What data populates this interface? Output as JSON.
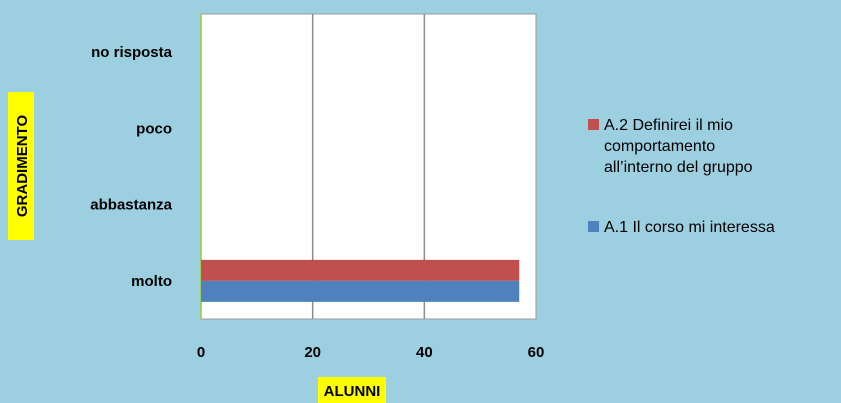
{
  "chart_data": {
    "type": "bar",
    "orientation": "horizontal",
    "categories": [
      "molto",
      "abbastanza",
      "poco",
      "no risposta"
    ],
    "series": [
      {
        "name": "A.1 Il corso mi interessa",
        "color": "#4f81bd",
        "values": [
          57,
          0,
          0,
          0
        ]
      },
      {
        "name": "A.2 Definirei il mio comportamento all’interno del gruppo",
        "name_lines": [
          "A.2 Definirei il mio",
          "comportamento",
          "all’interno del gruppo"
        ],
        "color": "#c0504d",
        "values": [
          57,
          0,
          0,
          0
        ]
      }
    ],
    "xlabel": "ALUNNI",
    "ylabel": "GRADIMENTO",
    "xlim": [
      0,
      60
    ],
    "xticks": [
      0,
      20,
      40,
      60
    ],
    "grid": true,
    "legend": "right",
    "colors": {
      "background": "#9ccfe0",
      "plot_area": "#ffffff",
      "axis_title_bg": "#ffff00",
      "gridline": "#8c8c8c"
    }
  }
}
